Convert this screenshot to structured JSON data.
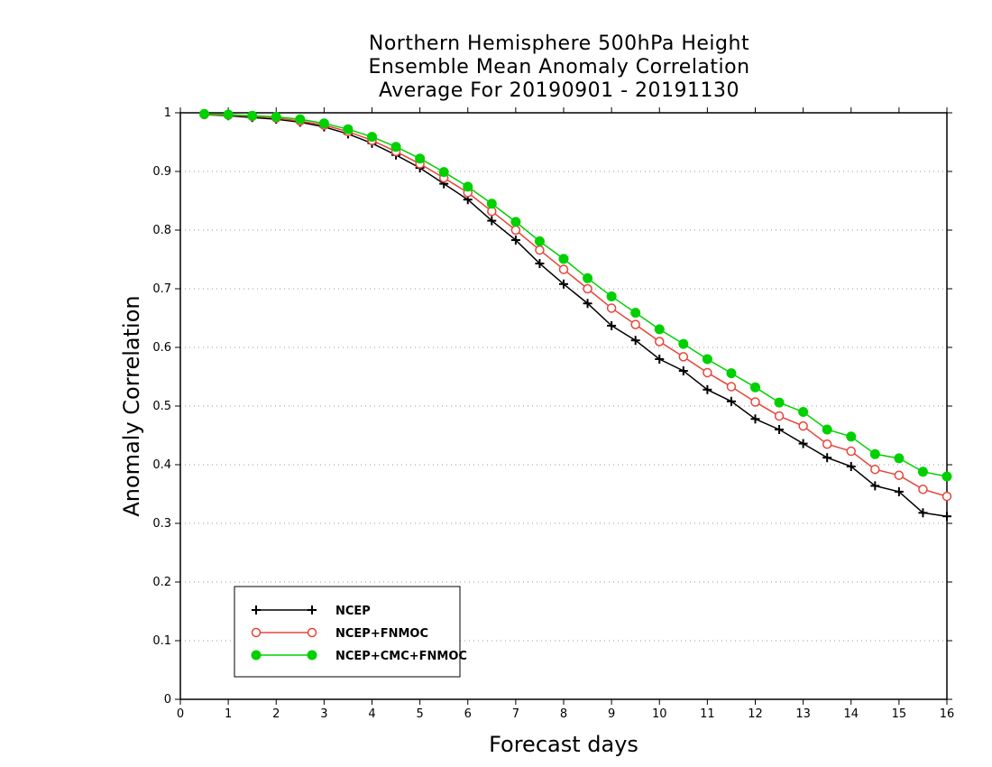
{
  "chart_data": {
    "type": "line",
    "title": [
      "Northern Hemisphere 500hPa Height",
      "Ensemble Mean Anomaly Correlation",
      "Average For 20190901 - 20191130"
    ],
    "xlabel": "Forecast days",
    "ylabel": "Anomaly Correlation",
    "xlim": [
      0,
      16
    ],
    "ylim": [
      0,
      1
    ],
    "xticks": [
      "0",
      "1",
      "2",
      "3",
      "4",
      "5",
      "6",
      "7",
      "8",
      "9",
      "10",
      "11",
      "12",
      "13",
      "14",
      "15",
      "16"
    ],
    "yticks": [
      "0",
      "0.1",
      "0.2",
      "0.3",
      "0.4",
      "0.5",
      "0.6",
      "0.7",
      "0.8",
      "0.9",
      "1"
    ],
    "grid": "horizontal dotted",
    "legend_position": "bottom-left",
    "x": [
      0.5,
      1,
      1.5,
      2,
      2.5,
      3,
      3.5,
      4,
      4.5,
      5,
      5.5,
      6,
      6.5,
      7,
      7.5,
      8,
      8.5,
      9,
      9.5,
      10,
      10.5,
      11,
      11.5,
      12,
      12.5,
      13,
      13.5,
      14,
      14.5,
      15,
      15.5,
      16
    ],
    "series": [
      {
        "name": "NCEP",
        "color": "#000000",
        "marker": "plus",
        "values": [
          0.997,
          0.995,
          0.992,
          0.989,
          0.984,
          0.976,
          0.964,
          0.948,
          0.928,
          0.906,
          0.879,
          0.852,
          0.816,
          0.783,
          0.743,
          0.708,
          0.675,
          0.637,
          0.612,
          0.58,
          0.56,
          0.528,
          0.508,
          0.478,
          0.46,
          0.436,
          0.412,
          0.397,
          0.364,
          0.354,
          0.318,
          0.312
        ]
      },
      {
        "name": "NCEP+FNMOC",
        "color": "#e8443a",
        "marker": "open-circle",
        "values": [
          0.997,
          0.996,
          0.994,
          0.991,
          0.986,
          0.979,
          0.968,
          0.953,
          0.934,
          0.913,
          0.889,
          0.864,
          0.832,
          0.8,
          0.766,
          0.733,
          0.7,
          0.667,
          0.639,
          0.61,
          0.584,
          0.557,
          0.533,
          0.507,
          0.483,
          0.466,
          0.435,
          0.423,
          0.392,
          0.382,
          0.358,
          0.346
        ]
      },
      {
        "name": "NCEP+CMC+FNMOC",
        "color": "#00d000",
        "marker": "filled-circle",
        "values": [
          0.998,
          0.997,
          0.995,
          0.993,
          0.989,
          0.982,
          0.972,
          0.959,
          0.942,
          0.922,
          0.899,
          0.874,
          0.845,
          0.814,
          0.781,
          0.751,
          0.718,
          0.687,
          0.659,
          0.631,
          0.606,
          0.58,
          0.556,
          0.532,
          0.506,
          0.49,
          0.46,
          0.448,
          0.418,
          0.411,
          0.388,
          0.38
        ]
      }
    ]
  }
}
